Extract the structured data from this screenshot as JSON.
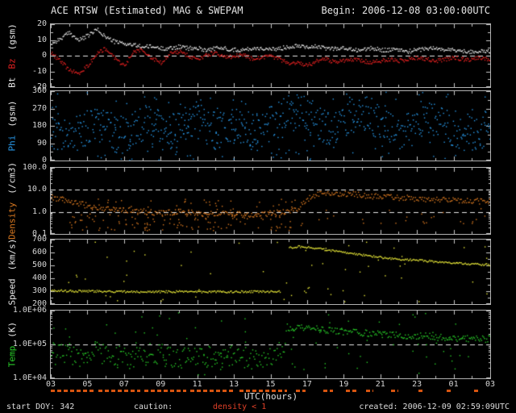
{
  "header": {
    "title": "ACE RTSW (Estimated) MAG & SWEPAM",
    "begin": "Begin: 2006-12-08 03:00:00UTC"
  },
  "footer": {
    "start_doy": "start DOY: 342",
    "caution_label": "caution:",
    "caution_value": "density < 1",
    "created": "created: 2006-12-09 02:59:09UTC"
  },
  "x_axis": {
    "label": "UTC(hours)",
    "ticks": [
      "03",
      "05",
      "07",
      "09",
      "11",
      "13",
      "15",
      "17",
      "19",
      "21",
      "23",
      "01",
      "03"
    ]
  },
  "colors": {
    "background": "#000000",
    "frame": "#b0b0b0",
    "tick": "#c8c8c8",
    "text": "#e4e4e4",
    "dashed_line": "#e8e8e8",
    "bt": "#e8e8e8",
    "bz": "#e02020",
    "phi": "#2898e8",
    "density": "#d87820",
    "speed": "#e8e838",
    "temp": "#28cc28",
    "caution_strip": "#d85510",
    "caution_text": "#e04028"
  },
  "caution_segments": [
    [
      3.0,
      5.4
    ],
    [
      5.6,
      7.9
    ],
    [
      8.1,
      10.4
    ],
    [
      10.6,
      13.1
    ],
    [
      13.3,
      15.9
    ],
    [
      16.4,
      16.9
    ],
    [
      17.9,
      18.4
    ],
    [
      19.1,
      19.7
    ],
    [
      20.2,
      20.6
    ],
    [
      21.6,
      22.0
    ],
    [
      23.1,
      23.4
    ],
    [
      24.6,
      24.9
    ],
    [
      26.1,
      26.4
    ]
  ],
  "chart_data": {
    "type": "scatter",
    "title": "ACE RTSW (Estimated) MAG & SWEPAM",
    "xlabel": "UTC(hours)",
    "x_range_hours": [
      3,
      27
    ],
    "x_start_hour": 3,
    "x_step_hours": 0.5,
    "panels": [
      {
        "id": "mag",
        "scale": "linear",
        "range": [
          -20,
          20
        ],
        "minor_tick": 5,
        "dashed_lines": [
          0
        ],
        "ticks": [
          {
            "label": "20",
            "v": 20
          },
          {
            "label": "10",
            "v": 10
          },
          {
            "label": "0",
            "v": 0
          },
          {
            "label": "-10",
            "v": -10
          },
          {
            "label": "-20",
            "v": -20
          }
        ],
        "ylabel_parts": [
          {
            "text": "Bt",
            "color": "#e8e8e8"
          },
          {
            "text": "Bz",
            "color": "#e02020"
          },
          {
            "text": "(gsm)",
            "color": "#e8e8e8"
          }
        ],
        "series": [
          {
            "name": "Bt",
            "color": "#e8e8e8",
            "noise": 1.3,
            "step": 1.0,
            "values": [
              8,
              11,
              15,
              10,
              13,
              17,
              12,
              9,
              8,
              7,
              6,
              6,
              5,
              5,
              6,
              5,
              5,
              4,
              5,
              5,
              4,
              4,
              5,
              5,
              4,
              5,
              6,
              7,
              6,
              6,
              5,
              5,
              5,
              4,
              4,
              5,
              4,
              4,
              4,
              3,
              4,
              5,
              5,
              4,
              4,
              3,
              3,
              3,
              3
            ]
          },
          {
            "name": "Bz",
            "color": "#e02020",
            "noise": 1.3,
            "step": 1.0,
            "values": [
              2,
              -3,
              -9,
              -11,
              -6,
              2,
              5,
              -2,
              -6,
              3,
              4,
              -1,
              -4,
              2,
              3,
              0,
              -2,
              1,
              2,
              -1,
              0,
              1,
              -2,
              -1,
              0,
              -2,
              -5,
              -4,
              -6,
              -3,
              -2,
              -4,
              -3,
              -2,
              -3,
              -4,
              -3,
              -2,
              -3,
              -2,
              -1,
              -2,
              -3,
              -2,
              -1,
              -2,
              -2,
              -1,
              -2
            ]
          }
        ]
      },
      {
        "id": "phi",
        "scale": "linear",
        "range": [
          0,
          360
        ],
        "minor_tick": 45,
        "dashed_lines": [],
        "ticks": [
          {
            "label": "360",
            "v": 360
          },
          {
            "label": "270",
            "v": 270
          },
          {
            "label": "180",
            "v": 180
          },
          {
            "label": "90",
            "v": 90
          },
          {
            "label": "0",
            "v": 0
          }
        ],
        "ylabel_parts": [
          {
            "text": "Phi",
            "color": "#2898e8"
          },
          {
            "text": "(gsm)",
            "color": "#e8e8e8"
          }
        ],
        "series": [
          {
            "name": "Phi",
            "color": "#2898e8",
            "noise": 95,
            "wrap": 360,
            "step": 0.9,
            "values": [
              160,
              140,
              120,
              150,
              180,
              200,
              170,
              150,
              130,
              160,
              190,
              220,
              180,
              150,
              170,
              200,
              230,
              180,
              140,
              160,
              200,
              180,
              150,
              170,
              190,
              220,
              250,
              270,
              240,
              200,
              180,
              160,
              200,
              240,
              260,
              230,
              200,
              170,
              150,
              180,
              210,
              240,
              220,
              190,
              170,
              150,
              140,
              160,
              180
            ]
          }
        ]
      },
      {
        "id": "density",
        "scale": "log",
        "range": [
          0.1,
          100
        ],
        "dashed_lines": [
          10,
          1
        ],
        "ticks": [
          {
            "label": "100.0",
            "v": 100
          },
          {
            "label": "10.0",
            "v": 10
          },
          {
            "label": "1.0",
            "v": 1
          },
          {
            "label": "0.1",
            "v": 0.1
          }
        ],
        "ylabel_parts": [
          {
            "text": "Density",
            "color": "#d87820"
          },
          {
            "text": "(/cm3)",
            "color": "#e8e8e8"
          }
        ],
        "series": [
          {
            "name": "Density",
            "color": "#d87820",
            "noise": 0.13,
            "lognoise": true,
            "values": [
              5,
              4,
              3,
              2.5,
              2,
              1.8,
              1.5,
              1.4,
              1.3,
              1.2,
              1.1,
              1.0,
              0.9,
              1.0,
              1.1,
              1.0,
              0.9,
              0.8,
              0.9,
              1.0,
              0.9,
              0.8,
              0.7,
              0.8,
              0.9,
              1.0,
              1.2,
              1.5,
              4,
              7,
              8,
              7.5,
              7,
              6.5,
              6,
              5.5,
              5,
              5,
              4.5,
              4.5,
              4,
              4,
              3.8,
              3.6,
              3.5,
              3.4,
              3.3,
              3.2,
              3
            ]
          }
        ]
      },
      {
        "id": "speed",
        "scale": "linear",
        "range": [
          200,
          700
        ],
        "minor_tick": 50,
        "dashed_lines": [],
        "ticks": [
          {
            "label": "700",
            "v": 700
          },
          {
            "label": "600",
            "v": 600
          },
          {
            "label": "500",
            "v": 500
          },
          {
            "label": "400",
            "v": 400
          },
          {
            "label": "300",
            "v": 300
          },
          {
            "label": "200",
            "v": 200
          }
        ],
        "ylabel_parts": [
          {
            "text": "Speed",
            "color": "#e8e8e8"
          },
          {
            "text": "(km/s)",
            "color": "#e8e8e8"
          }
        ],
        "series": [
          {
            "name": "Speed",
            "color": "#e8e838",
            "noise": 8,
            "values": [
              310,
              308,
              306,
              305,
              304,
              303,
              302,
              301,
              300,
              300,
              299,
              300,
              300,
              300,
              301,
              300,
              300,
              299,
              300,
              300,
              300,
              301,
              300,
              300,
              301,
              302,
              640,
              650,
              645,
              635,
              625,
              615,
              605,
              595,
              585,
              575,
              565,
              558,
              552,
              548,
              543,
              538,
              533,
              528,
              523,
              518,
              514,
              511,
              508
            ]
          }
        ]
      },
      {
        "id": "temp",
        "scale": "log",
        "range": [
          10000,
          1000000
        ],
        "dashed_lines": [
          100000
        ],
        "ticks": [
          {
            "label": "1.0E+06",
            "v": 1000000
          },
          {
            "label": "1.0E+05",
            "v": 100000
          },
          {
            "label": "1.0E+04",
            "v": 10000
          }
        ],
        "ylabel_parts": [
          {
            "text": "Temp",
            "color": "#28cc28"
          },
          {
            "text": "(K)",
            "color": "#e8e8e8"
          }
        ],
        "series": [
          {
            "name": "Temp",
            "color": "#28cc28",
            "noise": 0.32,
            "noise_after": 0.1,
            "noise_split": 16,
            "lognoise": true,
            "values": [
              60000,
              50000,
              55000,
              45000,
              50000,
              60000,
              55000,
              50000,
              45000,
              40000,
              50000,
              55000,
              50000,
              45000,
              40000,
              45000,
              50000,
              45000,
              40000,
              45000,
              50000,
              45000,
              40000,
              45000,
              50000,
              60000,
              300000,
              350000,
              320000,
              300000,
              280000,
              260000,
              250000,
              240000,
              230000,
              220000,
              210000,
              200000,
              190000,
              190000,
              180000,
              180000,
              170000,
              170000,
              160000,
              160000,
              150000,
              150000,
              150000
            ]
          }
        ]
      }
    ],
    "scatter_noise": [
      {
        "panel": 1,
        "color": "#2898e8",
        "count": 160,
        "x_range": [
          3,
          27
        ],
        "v_range": [
          2,
          358
        ],
        "log": false
      },
      {
        "panel": 2,
        "color": "#d87820",
        "count": 130,
        "x_range": [
          4,
          17
        ],
        "v_range": [
          0.15,
          0.85
        ],
        "log": true
      },
      {
        "panel": 2,
        "color": "#d87820",
        "count": 40,
        "x_range": [
          3.2,
          16.5
        ],
        "v_range": [
          1.2,
          4
        ],
        "log": true
      },
      {
        "panel": 2,
        "color": "#d87820",
        "count": 25,
        "x_range": [
          17,
          27
        ],
        "v_range": [
          0.3,
          1.6
        ],
        "log": true
      },
      {
        "panel": 3,
        "color": "#e8e838",
        "count": 60,
        "x_range": [
          3,
          27
        ],
        "v_range": [
          215,
          690
        ],
        "log": false
      },
      {
        "panel": 4,
        "color": "#28cc28",
        "count": 90,
        "x_range": [
          3,
          27
        ],
        "v_range": [
          12000,
          900000
        ],
        "log": true
      }
    ]
  }
}
